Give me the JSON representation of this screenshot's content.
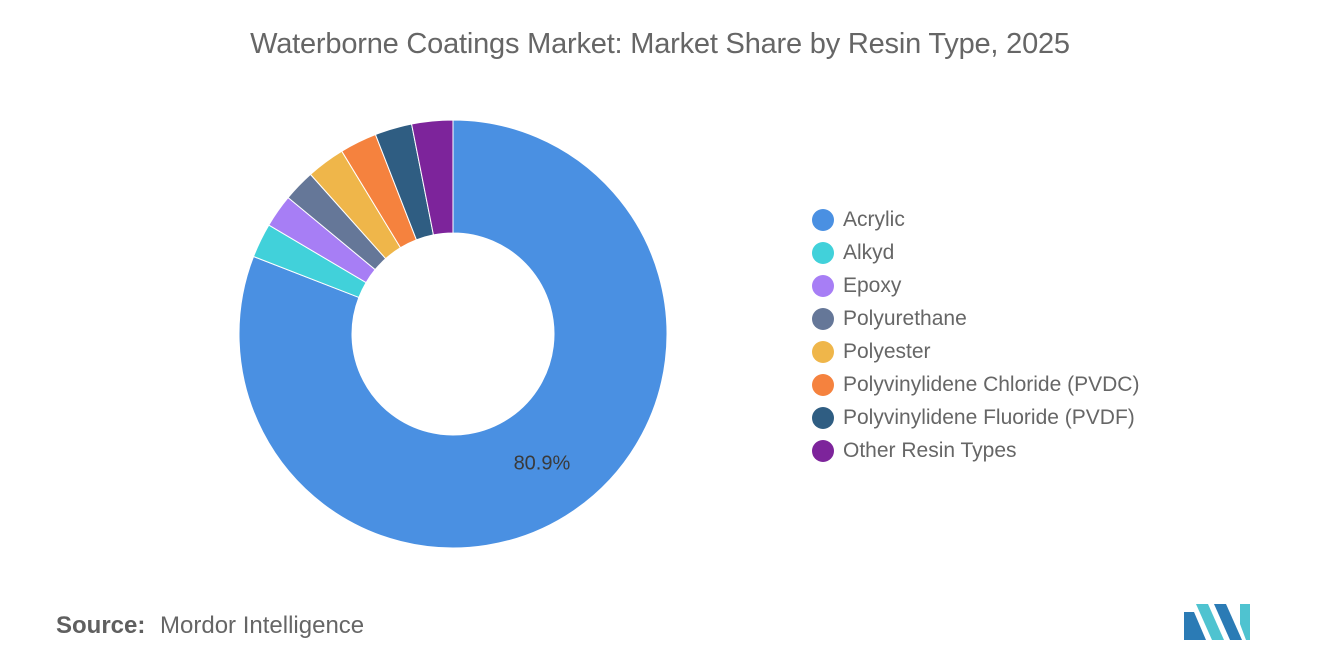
{
  "chart_data": {
    "type": "pie",
    "title": "Waterborne Coatings Market: Market Share by Resin Type, 2025",
    "donut": true,
    "start_angle_deg": 90,
    "legend_position": "right",
    "slices": [
      {
        "name": "Acrylic",
        "value": 80.9,
        "color": "#4a90e2",
        "label": "80.9%"
      },
      {
        "name": "Alkyd",
        "value": 2.6,
        "color": "#41d1da",
        "label": ""
      },
      {
        "name": "Epoxy",
        "value": 2.5,
        "color": "#a77ef5",
        "label": ""
      },
      {
        "name": "Polyurethane",
        "value": 2.4,
        "color": "#657798",
        "label": ""
      },
      {
        "name": "Polyester",
        "value": 2.9,
        "color": "#efb64a",
        "label": ""
      },
      {
        "name": "Polyvinylidene Chloride (PVDC)",
        "value": 2.8,
        "color": "#f5823e",
        "label": ""
      },
      {
        "name": "Polyvinylidene Fluoride (PVDF)",
        "value": 2.8,
        "color": "#2f5d82",
        "label": ""
      },
      {
        "name": "Other Resin Types",
        "value": 3.1,
        "color": "#7d249b",
        "label": ""
      }
    ]
  },
  "source": {
    "label": "Source:",
    "text": "Mordor Intelligence"
  },
  "logo": {
    "icon": "mordor-intelligence-logo",
    "colors": [
      "#2b7bb5",
      "#4fc3d0"
    ]
  }
}
